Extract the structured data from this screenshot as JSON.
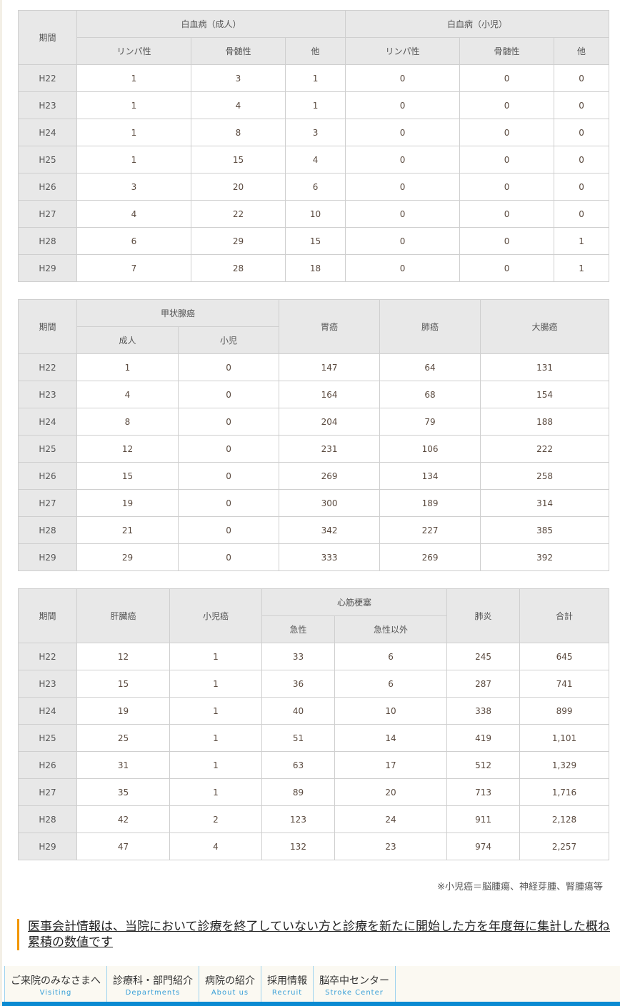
{
  "tables": [
    {
      "colwidths": [
        82,
        160,
        132,
        84,
        160,
        132,
        76
      ],
      "header": [
        [
          {
            "t": "期間",
            "rs": 2
          },
          {
            "t": "白血病（成人）",
            "cs": 3
          },
          {
            "t": "白血病（小児）",
            "cs": 3
          }
        ],
        [
          {
            "t": "リンパ性"
          },
          {
            "t": "骨髄性"
          },
          {
            "t": "他"
          },
          {
            "t": "リンパ性"
          },
          {
            "t": "骨髄性"
          },
          {
            "t": "他"
          }
        ]
      ],
      "rows": [
        [
          "H22",
          "1",
          "3",
          "1",
          "0",
          "0",
          "0"
        ],
        [
          "H23",
          "1",
          "4",
          "1",
          "0",
          "0",
          "0"
        ],
        [
          "H24",
          "1",
          "8",
          "3",
          "0",
          "0",
          "0"
        ],
        [
          "H25",
          "1",
          "15",
          "4",
          "0",
          "0",
          "0"
        ],
        [
          "H26",
          "3",
          "20",
          "6",
          "0",
          "0",
          "0"
        ],
        [
          "H27",
          "4",
          "22",
          "10",
          "0",
          "0",
          "0"
        ],
        [
          "H28",
          "6",
          "29",
          "15",
          "0",
          "0",
          "1"
        ],
        [
          "H29",
          "7",
          "28",
          "18",
          "0",
          "0",
          "1"
        ]
      ]
    },
    {
      "colwidths": [
        82,
        142,
        141,
        141,
        141,
        180
      ],
      "header": [
        [
          {
            "t": "期間",
            "rs": 2
          },
          {
            "t": "甲状腺癌",
            "cs": 2
          },
          {
            "t": "胃癌",
            "rs": 2
          },
          {
            "t": "肺癌",
            "rs": 2
          },
          {
            "t": "大腸癌",
            "rs": 2
          }
        ],
        [
          {
            "t": "成人"
          },
          {
            "t": "小児"
          }
        ]
      ],
      "rows": [
        [
          "H22",
          "1",
          "0",
          "147",
          "64",
          "131"
        ],
        [
          "H23",
          "4",
          "0",
          "164",
          "68",
          "154"
        ],
        [
          "H24",
          "8",
          "0",
          "204",
          "79",
          "188"
        ],
        [
          "H25",
          "12",
          "0",
          "231",
          "106",
          "222"
        ],
        [
          "H26",
          "15",
          "0",
          "269",
          "134",
          "258"
        ],
        [
          "H27",
          "19",
          "0",
          "300",
          "189",
          "314"
        ],
        [
          "H28",
          "21",
          "0",
          "342",
          "227",
          "385"
        ],
        [
          "H29",
          "29",
          "0",
          "333",
          "269",
          "392"
        ]
      ]
    },
    {
      "colwidths": [
        82,
        130,
        129,
        102,
        157,
        102,
        125
      ],
      "header": [
        [
          {
            "t": "期間",
            "rs": 2
          },
          {
            "t": "肝臓癌",
            "rs": 2
          },
          {
            "t": "小児癌",
            "rs": 2
          },
          {
            "t": "心筋梗塞",
            "cs": 2
          },
          {
            "t": "肺炎",
            "rs": 2
          },
          {
            "t": "合計",
            "rs": 2
          }
        ],
        [
          {
            "t": "急性"
          },
          {
            "t": "急性以外"
          }
        ]
      ],
      "rows": [
        [
          "H22",
          "12",
          "1",
          "33",
          "6",
          "245",
          "645"
        ],
        [
          "H23",
          "15",
          "1",
          "36",
          "6",
          "287",
          "741"
        ],
        [
          "H24",
          "19",
          "1",
          "40",
          "10",
          "338",
          "899"
        ],
        [
          "H25",
          "25",
          "1",
          "51",
          "14",
          "419",
          "1,101"
        ],
        [
          "H26",
          "31",
          "1",
          "63",
          "17",
          "512",
          "1,329"
        ],
        [
          "H27",
          "35",
          "1",
          "89",
          "20",
          "713",
          "1,716"
        ],
        [
          "H28",
          "42",
          "2",
          "123",
          "24",
          "911",
          "2,128"
        ],
        [
          "H29",
          "47",
          "4",
          "132",
          "23",
          "974",
          "2,257"
        ]
      ]
    }
  ],
  "note": "※小児癌＝脳腫瘍、神経芽腫、腎腫瘍等",
  "info": "医事会計情報は、当院において診療を終了していない方と診療を新たに開始した方を年度毎に集計した概ね累積の数値です",
  "nav": [
    {
      "jp": "ご来院のみなさまへ",
      "en": "Visiting"
    },
    {
      "jp": "診療科・部門紹介",
      "en": "Departments"
    },
    {
      "jp": "病院の紹介",
      "en": "About us"
    },
    {
      "jp": "採用情報",
      "en": "Recruit"
    },
    {
      "jp": "脳卒中センター",
      "en": "Stroke Center"
    }
  ]
}
